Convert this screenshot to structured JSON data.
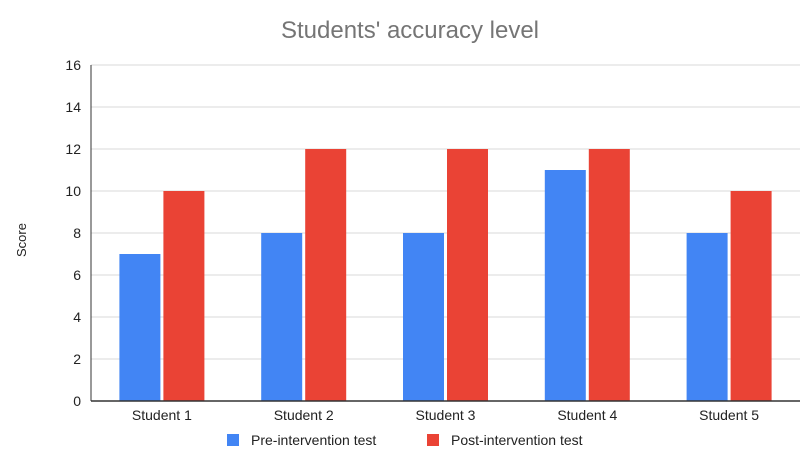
{
  "chart_data": {
    "type": "bar",
    "title": "Students' accuracy level",
    "xlabel": "",
    "ylabel": "Score",
    "categories": [
      "Student 1",
      "Student 2",
      "Student 3",
      "Student 4",
      "Student 5"
    ],
    "series": [
      {
        "name": "Pre-intervention test",
        "color": "#4285F4",
        "values": [
          7,
          8,
          8,
          11,
          8
        ]
      },
      {
        "name": "Post-intervention test",
        "color": "#EA4335",
        "values": [
          10,
          12,
          12,
          12,
          10
        ]
      }
    ],
    "ylim": [
      0,
      16
    ],
    "yticks": [
      "0",
      "2",
      "4",
      "6",
      "8",
      "10",
      "12",
      "14",
      "16"
    ],
    "grid": true,
    "legend_position": "bottom"
  }
}
